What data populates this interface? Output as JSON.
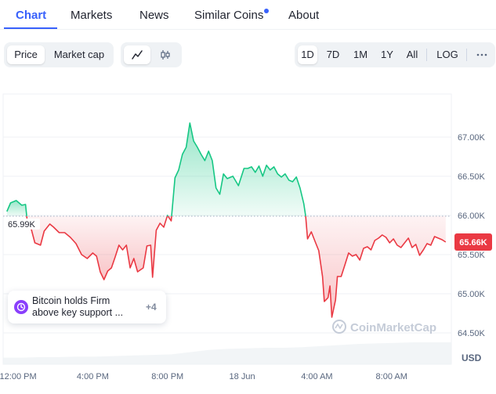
{
  "tabs": [
    {
      "label": "Chart",
      "active": true
    },
    {
      "label": "Markets",
      "active": false
    },
    {
      "label": "News",
      "active": false
    },
    {
      "label": "Similar Coins",
      "active": false,
      "dot": true
    },
    {
      "label": "About",
      "active": false
    }
  ],
  "view_toggle": {
    "price_label": "Price",
    "market_cap_label": "Market cap",
    "selected": "Price"
  },
  "chart_type_toggle": {
    "line_icon": "line-chart-icon",
    "candle_icon": "candlestick-icon",
    "selected": "line"
  },
  "ranges": {
    "items": [
      "1D",
      "7D",
      "1M",
      "1Y",
      "All"
    ],
    "selected": "1D",
    "log_label": "LOG",
    "more_icon": "more-horizontal-icon"
  },
  "news_card": {
    "line1": "Bitcoin holds Firm",
    "line2": "above key support ...",
    "count": "+4",
    "icon": "news-icon"
  },
  "watermark": {
    "text": "CoinMarketCap"
  },
  "colors": {
    "up": "#16c784",
    "down": "#ea3943",
    "accent": "#3861fb",
    "news_icon": "#8a3ffc"
  },
  "chart_data": {
    "type": "area",
    "unit_label": "USD",
    "reference": {
      "value": 65990,
      "label": "65.99K"
    },
    "current": {
      "value": 65660,
      "label": "65.66K"
    },
    "ylim": [
      64100,
      67550
    ],
    "xlim": [
      0,
      24
    ],
    "y_ticks": [
      {
        "value": 67000,
        "label": "67.00K"
      },
      {
        "value": 66500,
        "label": "66.50K"
      },
      {
        "value": 66000,
        "label": "66.00K"
      },
      {
        "value": 65500,
        "label": "65.50K"
      },
      {
        "value": 65000,
        "label": "65.00K"
      },
      {
        "value": 64500,
        "label": "64.50K"
      }
    ],
    "x_ticks": [
      {
        "value": 0.8,
        "label": "12:00 PM"
      },
      {
        "value": 4.8,
        "label": "4:00 PM"
      },
      {
        "value": 8.8,
        "label": "8:00 PM"
      },
      {
        "value": 12.8,
        "label": "18 Jun"
      },
      {
        "value": 16.8,
        "label": "4:00 AM"
      },
      {
        "value": 20.8,
        "label": "8:00 AM"
      }
    ],
    "series": [
      {
        "values": [
          [
            0.2,
            66050
          ],
          [
            0.4,
            66160
          ],
          [
            0.7,
            66190
          ],
          [
            1.0,
            66130
          ],
          [
            1.2,
            66140
          ],
          [
            1.3,
            65900
          ],
          [
            1.5,
            65830
          ],
          [
            1.7,
            65650
          ],
          [
            2.0,
            65620
          ],
          [
            2.2,
            65800
          ],
          [
            2.5,
            65890
          ],
          [
            2.7,
            65850
          ],
          [
            3.0,
            65780
          ],
          [
            3.3,
            65780
          ],
          [
            3.6,
            65720
          ],
          [
            3.9,
            65640
          ],
          [
            4.2,
            65500
          ],
          [
            4.5,
            65450
          ],
          [
            4.8,
            65520
          ],
          [
            5.0,
            65480
          ],
          [
            5.2,
            65280
          ],
          [
            5.4,
            65180
          ],
          [
            5.6,
            65290
          ],
          [
            5.8,
            65330
          ],
          [
            6.0,
            65470
          ],
          [
            6.2,
            65620
          ],
          [
            6.4,
            65560
          ],
          [
            6.6,
            65620
          ],
          [
            6.8,
            65330
          ],
          [
            7.0,
            65450
          ],
          [
            7.2,
            65280
          ],
          [
            7.5,
            65330
          ],
          [
            7.7,
            65610
          ],
          [
            7.9,
            65620
          ],
          [
            8.0,
            65210
          ],
          [
            8.2,
            65810
          ],
          [
            8.4,
            65900
          ],
          [
            8.6,
            65850
          ],
          [
            8.8,
            66000
          ],
          [
            9.0,
            65930
          ],
          [
            9.2,
            66480
          ],
          [
            9.4,
            66580
          ],
          [
            9.6,
            66780
          ],
          [
            9.8,
            66870
          ],
          [
            10.0,
            67180
          ],
          [
            10.2,
            66950
          ],
          [
            10.4,
            66870
          ],
          [
            10.6,
            66780
          ],
          [
            10.8,
            66700
          ],
          [
            11.0,
            66820
          ],
          [
            11.2,
            66700
          ],
          [
            11.4,
            66350
          ],
          [
            11.6,
            66270
          ],
          [
            11.8,
            66530
          ],
          [
            12.0,
            66470
          ],
          [
            12.3,
            66500
          ],
          [
            12.6,
            66380
          ],
          [
            12.9,
            66600
          ],
          [
            13.1,
            66600
          ],
          [
            13.3,
            66620
          ],
          [
            13.5,
            66550
          ],
          [
            13.7,
            66630
          ],
          [
            13.9,
            66500
          ],
          [
            14.1,
            66640
          ],
          [
            14.3,
            66580
          ],
          [
            14.5,
            66620
          ],
          [
            14.7,
            66530
          ],
          [
            14.9,
            66490
          ],
          [
            15.1,
            66530
          ],
          [
            15.3,
            66450
          ],
          [
            15.5,
            66430
          ],
          [
            15.7,
            66490
          ],
          [
            15.9,
            66350
          ],
          [
            16.1,
            66150
          ],
          [
            16.2,
            65990
          ],
          [
            16.3,
            65700
          ],
          [
            16.5,
            65790
          ],
          [
            16.7,
            65670
          ],
          [
            16.9,
            65550
          ],
          [
            17.1,
            65220
          ],
          [
            17.2,
            64900
          ],
          [
            17.4,
            64950
          ],
          [
            17.5,
            65100
          ],
          [
            17.6,
            64700
          ],
          [
            17.8,
            64920
          ],
          [
            17.9,
            65220
          ],
          [
            18.1,
            65220
          ],
          [
            18.3,
            65370
          ],
          [
            18.5,
            65520
          ],
          [
            18.7,
            65480
          ],
          [
            18.9,
            65500
          ],
          [
            19.1,
            65430
          ],
          [
            19.3,
            65580
          ],
          [
            19.5,
            65600
          ],
          [
            19.7,
            65560
          ],
          [
            19.9,
            65680
          ],
          [
            20.1,
            65710
          ],
          [
            20.3,
            65750
          ],
          [
            20.5,
            65720
          ],
          [
            20.7,
            65650
          ],
          [
            20.9,
            65700
          ],
          [
            21.1,
            65620
          ],
          [
            21.3,
            65590
          ],
          [
            21.5,
            65650
          ],
          [
            21.7,
            65710
          ],
          [
            21.9,
            65590
          ],
          [
            22.1,
            65630
          ],
          [
            22.3,
            65490
          ],
          [
            22.5,
            65560
          ],
          [
            22.7,
            65640
          ],
          [
            22.9,
            65620
          ],
          [
            23.1,
            65730
          ],
          [
            23.3,
            65710
          ],
          [
            23.5,
            65690
          ],
          [
            23.7,
            65660
          ]
        ]
      }
    ],
    "volume": [
      0.12,
      0.12,
      0.13,
      0.13,
      0.14,
      0.14,
      0.15,
      0.16,
      0.17,
      0.18,
      0.22,
      0.26,
      0.28,
      0.29,
      0.3,
      0.3,
      0.31,
      0.33,
      0.35,
      0.37,
      0.38,
      0.39,
      0.4,
      0.4,
      0.4
    ],
    "grid": true
  }
}
